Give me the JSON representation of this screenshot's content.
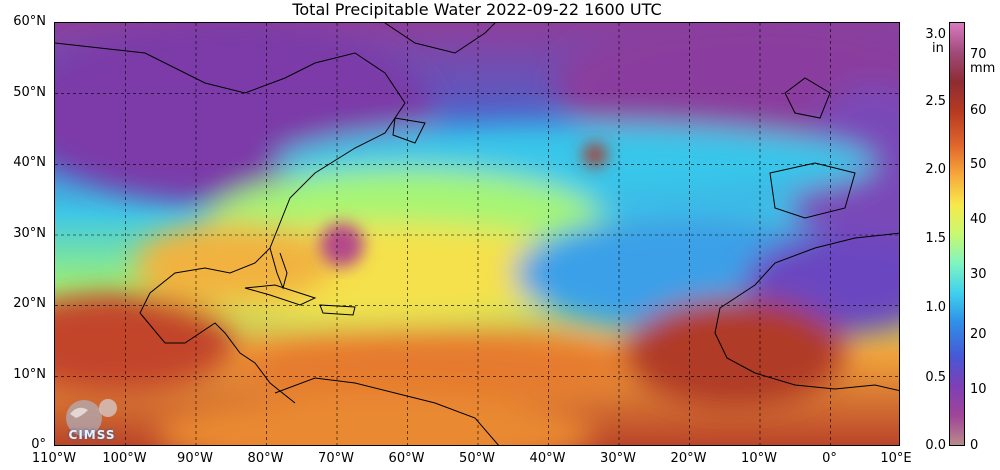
{
  "title": "Total Precipitable Water  2022-09-22 1600 UTC",
  "lat_labels": [
    "60°N",
    "50°N",
    "40°N",
    "30°N",
    "20°N",
    "10°N",
    "0°"
  ],
  "lon_labels": [
    "110°W",
    "100°W",
    "90°W",
    "80°W",
    "70°W",
    "60°W",
    "50°W",
    "40°W",
    "30°W",
    "20°W",
    "10°W",
    "0°",
    "10°E"
  ],
  "colorbar": {
    "inch_ticks": [
      "3.0",
      "2.5",
      "2.0",
      "1.5",
      "1.0",
      "0.5",
      "0.0"
    ],
    "inch_unit": "in",
    "mm_ticks": [
      "70",
      "60",
      "50",
      "40",
      "30",
      "20",
      "10",
      "0"
    ],
    "mm_unit": "mm",
    "colors": [
      "#b98a8a",
      "#a0449a",
      "#7e3fb5",
      "#4758d6",
      "#2f8fe6",
      "#3fd0ee",
      "#7ff5c0",
      "#c9f870",
      "#f7e84a",
      "#f7a83a",
      "#e0662c",
      "#b63a22",
      "#8e2c33",
      "#a04a7a",
      "#d97ac0"
    ]
  },
  "logo": {
    "text": "CIMSS"
  }
}
